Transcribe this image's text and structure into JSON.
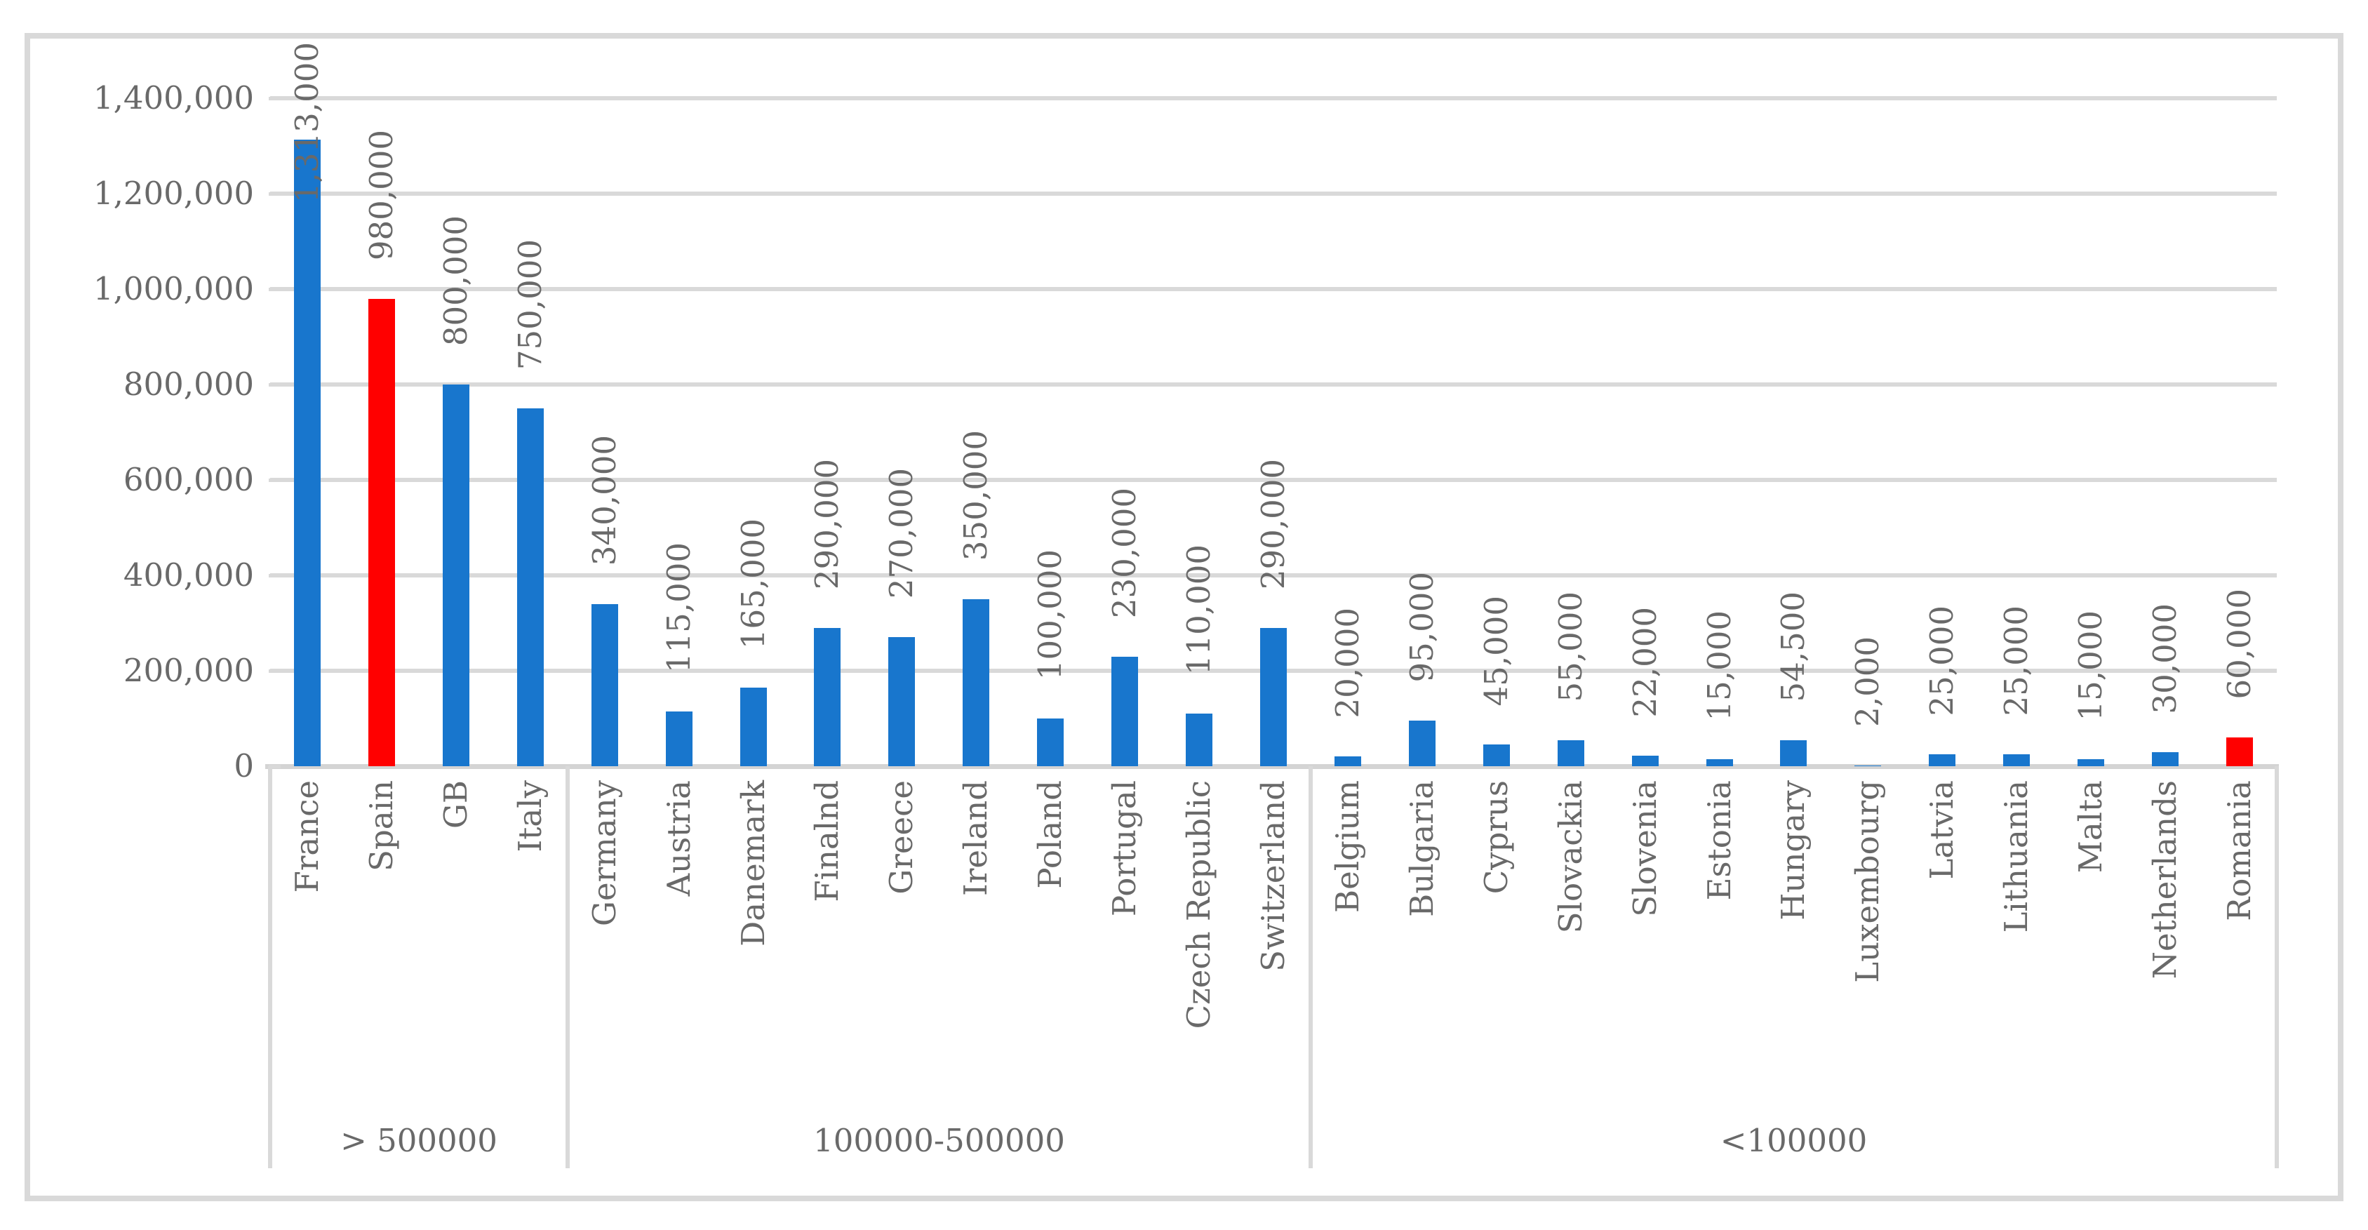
{
  "chart_data": {
    "type": "bar",
    "title": "",
    "xlabel": "",
    "ylabel": "",
    "ylim": [
      0,
      1400000
    ],
    "ytick_step": 200000,
    "ytick_labels": [
      "0",
      "200,000",
      "400,000",
      "600,000",
      "800,000",
      "1,000,000",
      "1,200,000",
      "1,400,000"
    ],
    "grid": "horizontal",
    "legend": "none",
    "groups": [
      {
        "label": "> 500000",
        "countries": [
          {
            "name": "France",
            "value": 1313000,
            "value_label": "1,313,000",
            "highlight": false
          },
          {
            "name": "Spain",
            "value": 980000,
            "value_label": "980,000",
            "highlight": true
          },
          {
            "name": "GB",
            "value": 800000,
            "value_label": "800,000",
            "highlight": false
          },
          {
            "name": "Italy",
            "value": 750000,
            "value_label": "750,000",
            "highlight": false
          }
        ]
      },
      {
        "label": "100000-500000",
        "countries": [
          {
            "name": "Germany",
            "value": 340000,
            "value_label": "340,000",
            "highlight": false
          },
          {
            "name": "Austria",
            "value": 115000,
            "value_label": "115,000",
            "highlight": false
          },
          {
            "name": "Danemark",
            "value": 165000,
            "value_label": "165,000",
            "highlight": false
          },
          {
            "name": "Finalnd",
            "value": 290000,
            "value_label": "290,000",
            "highlight": false
          },
          {
            "name": "Greece",
            "value": 270000,
            "value_label": "270,000",
            "highlight": false
          },
          {
            "name": "Ireland",
            "value": 350000,
            "value_label": "350,000",
            "highlight": false
          },
          {
            "name": "Poland",
            "value": 100000,
            "value_label": "100,000",
            "highlight": false
          },
          {
            "name": "Portugal",
            "value": 230000,
            "value_label": "230,000",
            "highlight": false
          },
          {
            "name": "Czech Republic",
            "value": 110000,
            "value_label": "110,000",
            "highlight": false
          },
          {
            "name": "Switzerland",
            "value": 290000,
            "value_label": "290,000",
            "highlight": false
          }
        ]
      },
      {
        "label": "<100000",
        "countries": [
          {
            "name": "Belgium",
            "value": 20000,
            "value_label": "20,000",
            "highlight": false
          },
          {
            "name": "Bulgaria",
            "value": 95000,
            "value_label": "95,000",
            "highlight": false
          },
          {
            "name": "Cyprus",
            "value": 45000,
            "value_label": "45,000",
            "highlight": false
          },
          {
            "name": "Slovackia",
            "value": 55000,
            "value_label": "55,000",
            "highlight": false
          },
          {
            "name": "Slovenia",
            "value": 22000,
            "value_label": "22,000",
            "highlight": false
          },
          {
            "name": "Estonia",
            "value": 15000,
            "value_label": "15,000",
            "highlight": false
          },
          {
            "name": "Hungary",
            "value": 54500,
            "value_label": "54,500",
            "highlight": false
          },
          {
            "name": "Luxembourg",
            "value": 2000,
            "value_label": "2,000",
            "highlight": false
          },
          {
            "name": "Latvia",
            "value": 25000,
            "value_label": "25,000",
            "highlight": false
          },
          {
            "name": "Lithuania",
            "value": 25000,
            "value_label": "25,000",
            "highlight": false
          },
          {
            "name": "Malta",
            "value": 15000,
            "value_label": "15,000",
            "highlight": false
          },
          {
            "name": "Netherlands",
            "value": 30000,
            "value_label": "30,000",
            "highlight": false
          },
          {
            "name": "Romania",
            "value": 60000,
            "value_label": "60,000",
            "highlight": true
          }
        ]
      }
    ],
    "colors": {
      "bar": "#1876CD",
      "highlight": "#FF0000",
      "grid": "#D9D9D9",
      "border": "#D9D9D9",
      "text": "#696969",
      "background": "#FFFFFF"
    }
  }
}
